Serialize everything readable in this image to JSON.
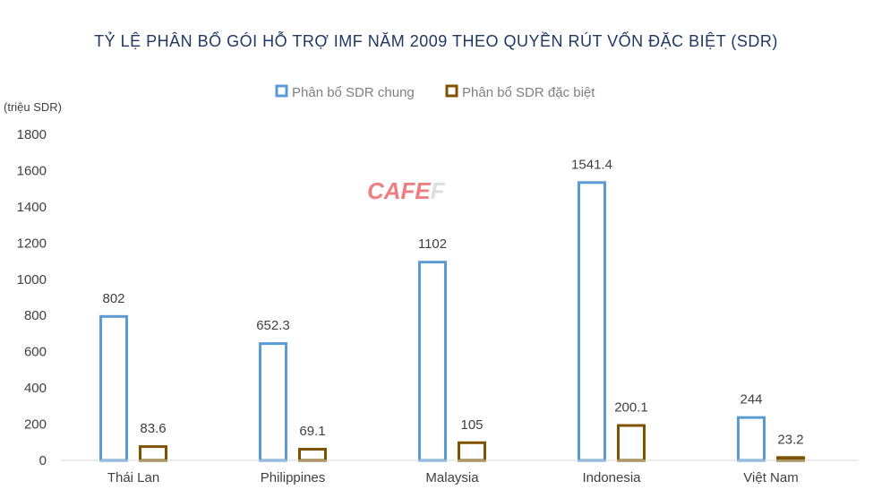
{
  "chart_data": {
    "type": "bar",
    "title": "TỶ LỆ PHÂN BỔ GÓI HỖ TRỢ IMF NĂM 2009 THEO QUYỀN RÚT VỐN ĐẶC BIỆT (SDR)",
    "ylabel": "(triệu SDR)",
    "ylim": [
      0,
      1800
    ],
    "yticks": [
      0,
      200,
      400,
      600,
      800,
      1000,
      1200,
      1400,
      1600,
      1800
    ],
    "categories": [
      "Thái Lan",
      "Philippines",
      "Malaysia",
      "Indonesia",
      "Việt Nam"
    ],
    "series": [
      {
        "name": "Phân bổ SDR chung",
        "color": "#5b9bd5",
        "values": [
          802,
          652.3,
          1102,
          1541.4,
          244
        ],
        "labels": [
          "802",
          "652.3",
          "1102",
          "1541.4",
          "244"
        ]
      },
      {
        "name": "Phân bổ SDR đặc biệt",
        "color": "#7f5200",
        "values": [
          83.6,
          69.1,
          105,
          200.1,
          23.2
        ],
        "labels": [
          "83.6",
          "69.1",
          "105",
          "200.1",
          "23.2"
        ]
      }
    ],
    "highlight_category": "Việt Nam",
    "highlight_color": "#8b1a1a",
    "legend": "top-center",
    "grid": true
  },
  "watermark": {
    "part1": "CAFE",
    "part2": "F"
  }
}
